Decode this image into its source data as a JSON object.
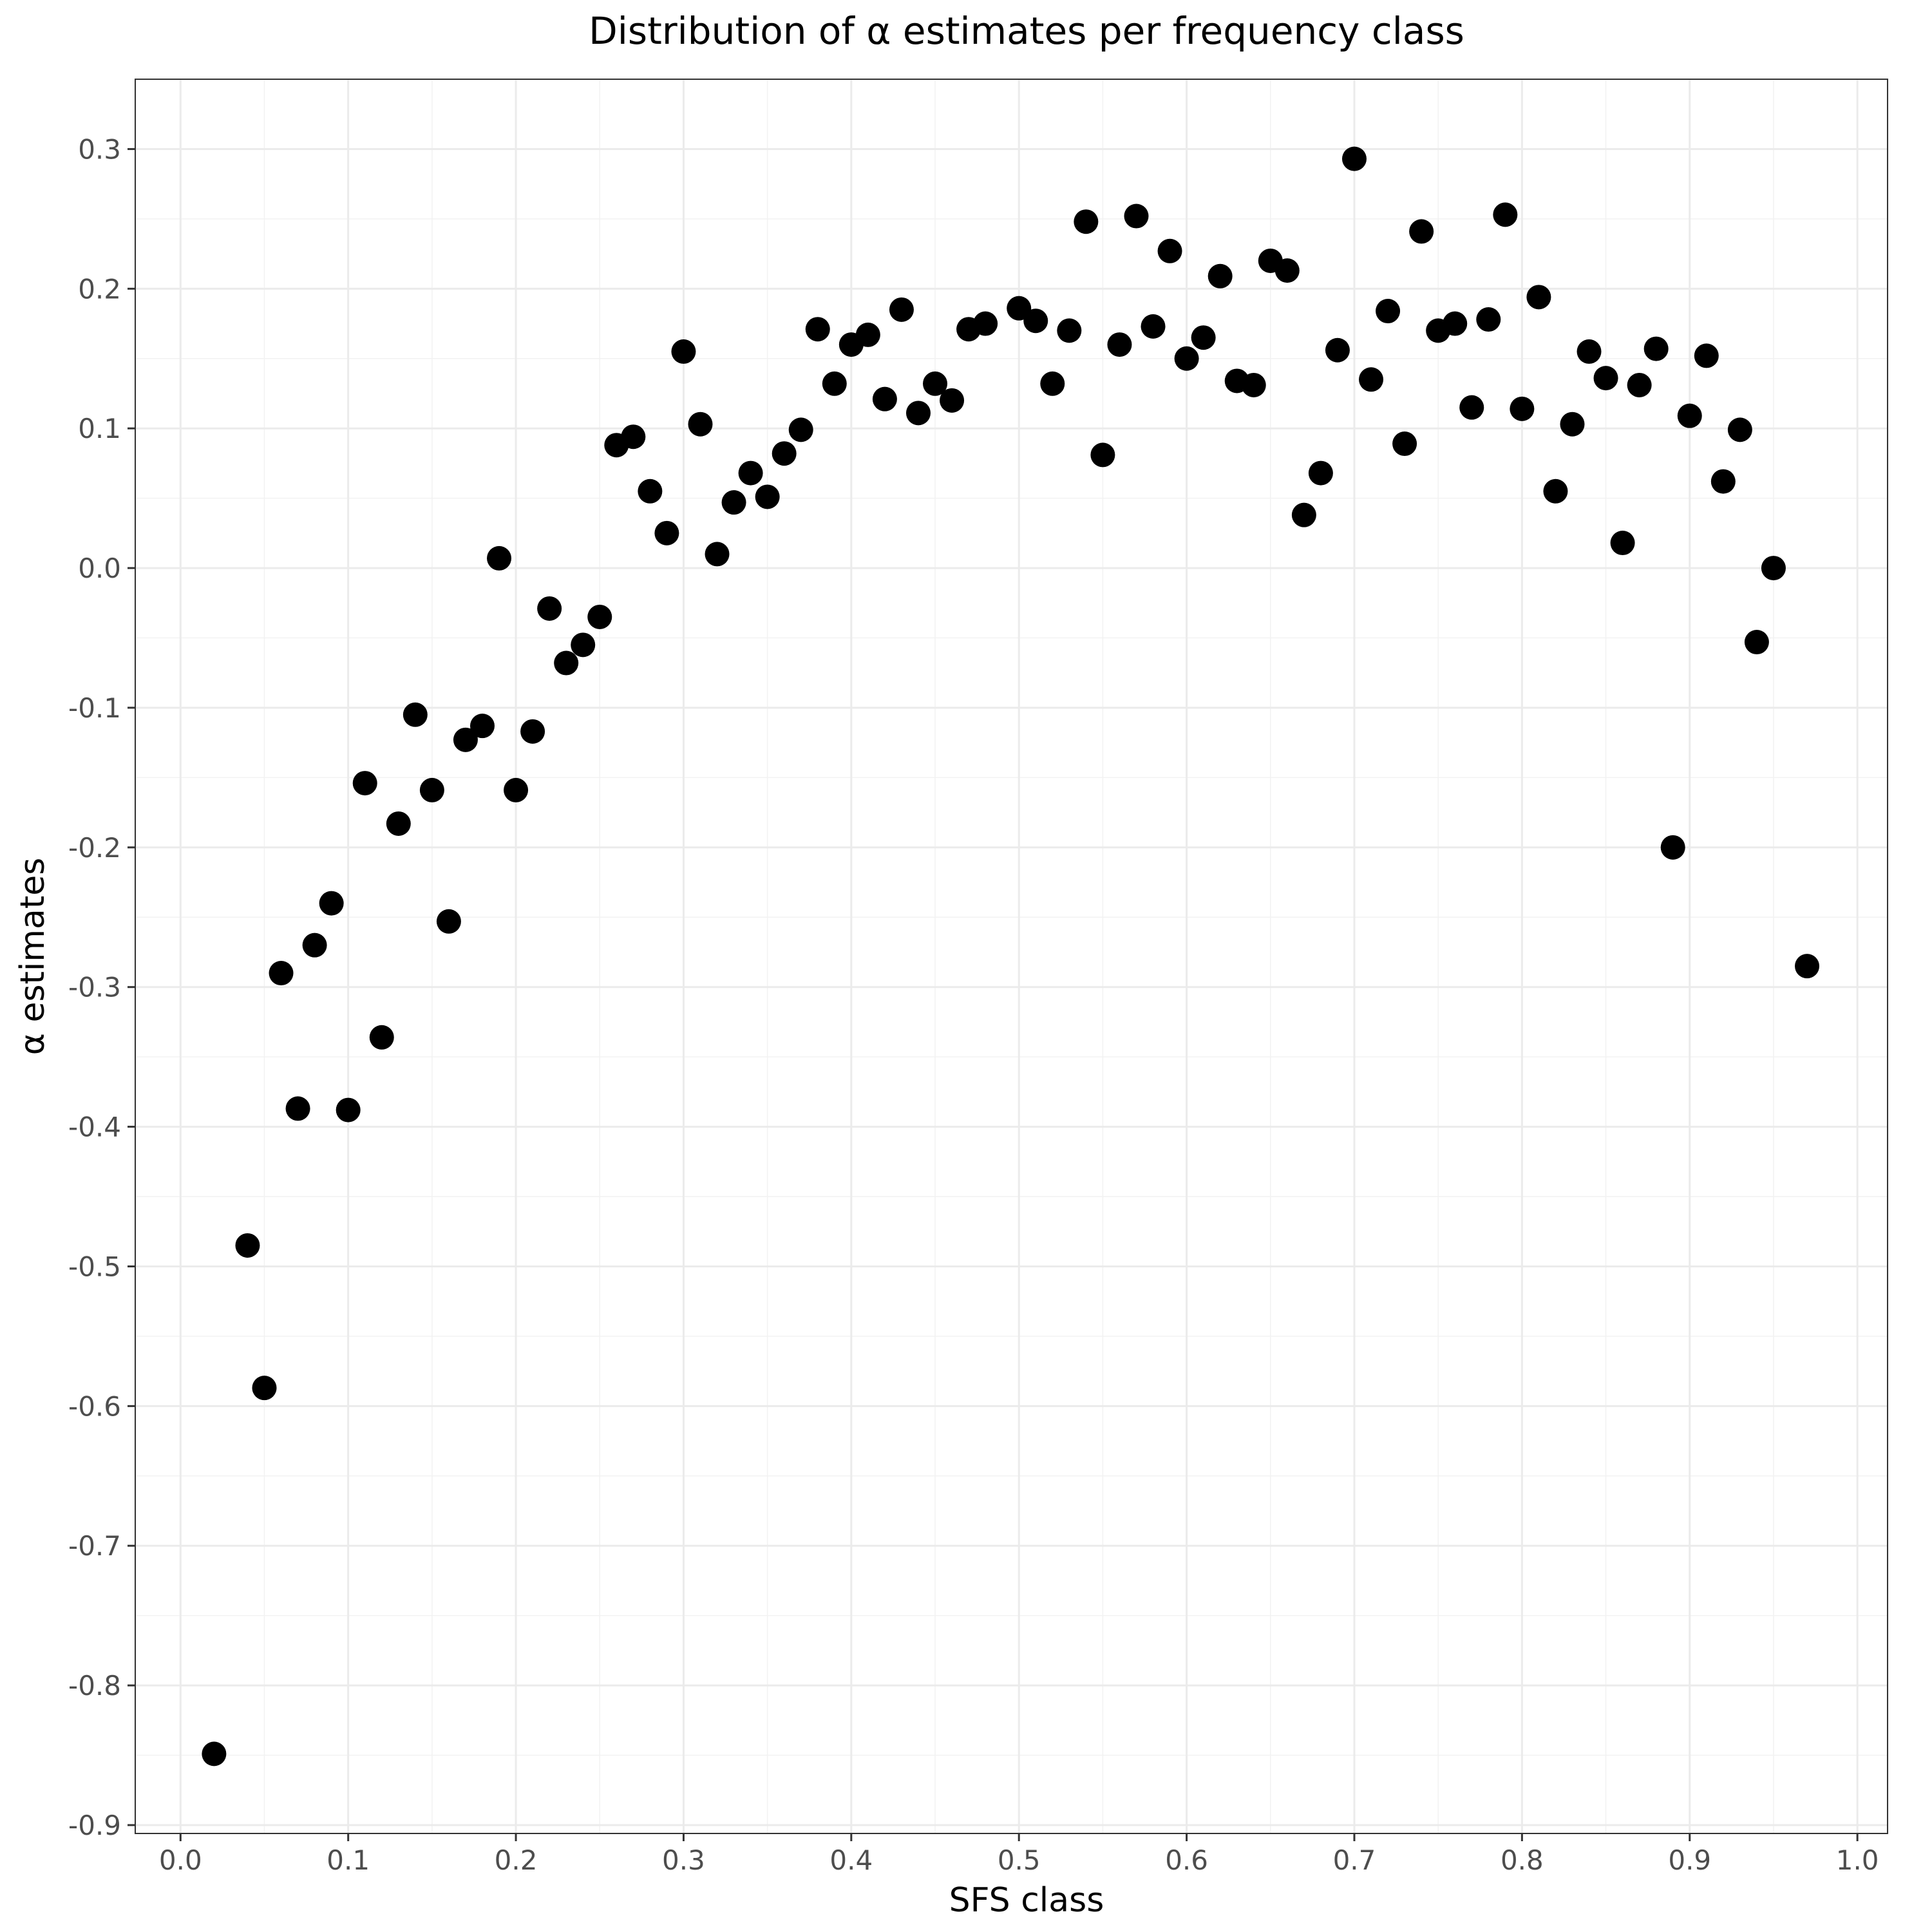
{
  "chart_data": {
    "type": "scatter",
    "title": "Distribution of  α estimates per frequency class",
    "xlabel": "SFS class",
    "ylabel": "α estimates",
    "xlim": [
      -0.027,
      1.018
    ],
    "ylim": [
      -0.906,
      0.35
    ],
    "xticks": [
      0.0,
      0.1,
      0.2,
      0.3,
      0.4,
      0.5,
      0.6,
      0.7,
      0.8,
      0.9,
      1.0
    ],
    "xtick_labels": [
      "0.0",
      "0.1",
      "0.2",
      "0.3",
      "0.4",
      "0.5",
      "0.6",
      "0.7",
      "0.8",
      "0.9",
      "1.0"
    ],
    "yticks": [
      0.3,
      0.2,
      0.1,
      0.0,
      -0.1,
      -0.2,
      -0.3,
      -0.4,
      -0.5,
      -0.6,
      -0.7,
      -0.8,
      -0.9
    ],
    "ytick_labels": [
      "0.3",
      "0.2",
      "0.1",
      "0.0",
      "-0.1",
      "-0.2",
      "-0.3",
      "-0.4",
      "-0.5",
      "-0.6",
      "-0.7",
      "-0.8",
      "-0.9"
    ],
    "grid": true,
    "point_color": "#000000",
    "points": [
      {
        "x": 0.02,
        "y": -0.849
      },
      {
        "x": 0.04,
        "y": -0.485
      },
      {
        "x": 0.05,
        "y": -0.587
      },
      {
        "x": 0.06,
        "y": -0.29
      },
      {
        "x": 0.07,
        "y": -0.387
      },
      {
        "x": 0.08,
        "y": -0.27
      },
      {
        "x": 0.09,
        "y": -0.24
      },
      {
        "x": 0.1,
        "y": -0.388
      },
      {
        "x": 0.11,
        "y": -0.154
      },
      {
        "x": 0.12,
        "y": -0.336
      },
      {
        "x": 0.13,
        "y": -0.183
      },
      {
        "x": 0.14,
        "y": -0.105
      },
      {
        "x": 0.15,
        "y": -0.159
      },
      {
        "x": 0.16,
        "y": -0.253
      },
      {
        "x": 0.17,
        "y": -0.123
      },
      {
        "x": 0.18,
        "y": -0.113
      },
      {
        "x": 0.19,
        "y": 0.007
      },
      {
        "x": 0.2,
        "y": -0.159
      },
      {
        "x": 0.21,
        "y": -0.117
      },
      {
        "x": 0.22,
        "y": -0.029
      },
      {
        "x": 0.23,
        "y": -0.068
      },
      {
        "x": 0.24,
        "y": -0.055
      },
      {
        "x": 0.25,
        "y": -0.035
      },
      {
        "x": 0.26,
        "y": 0.088
      },
      {
        "x": 0.27,
        "y": 0.094
      },
      {
        "x": 0.28,
        "y": 0.055
      },
      {
        "x": 0.29,
        "y": 0.025
      },
      {
        "x": 0.3,
        "y": 0.155
      },
      {
        "x": 0.31,
        "y": 0.103
      },
      {
        "x": 0.32,
        "y": 0.01
      },
      {
        "x": 0.33,
        "y": 0.047
      },
      {
        "x": 0.34,
        "y": 0.068
      },
      {
        "x": 0.35,
        "y": 0.051
      },
      {
        "x": 0.36,
        "y": 0.082
      },
      {
        "x": 0.37,
        "y": 0.099
      },
      {
        "x": 0.38,
        "y": 0.171
      },
      {
        "x": 0.39,
        "y": 0.132
      },
      {
        "x": 0.4,
        "y": 0.16
      },
      {
        "x": 0.41,
        "y": 0.167
      },
      {
        "x": 0.42,
        "y": 0.121
      },
      {
        "x": 0.43,
        "y": 0.185
      },
      {
        "x": 0.44,
        "y": 0.111
      },
      {
        "x": 0.45,
        "y": 0.132
      },
      {
        "x": 0.46,
        "y": 0.12
      },
      {
        "x": 0.47,
        "y": 0.171
      },
      {
        "x": 0.48,
        "y": 0.175
      },
      {
        "x": 0.5,
        "y": 0.186
      },
      {
        "x": 0.51,
        "y": 0.177
      },
      {
        "x": 0.52,
        "y": 0.132
      },
      {
        "x": 0.53,
        "y": 0.17
      },
      {
        "x": 0.54,
        "y": 0.248
      },
      {
        "x": 0.55,
        "y": 0.081
      },
      {
        "x": 0.56,
        "y": 0.16
      },
      {
        "x": 0.57,
        "y": 0.252
      },
      {
        "x": 0.58,
        "y": 0.173
      },
      {
        "x": 0.59,
        "y": 0.227
      },
      {
        "x": 0.6,
        "y": 0.15
      },
      {
        "x": 0.61,
        "y": 0.165
      },
      {
        "x": 0.62,
        "y": 0.209
      },
      {
        "x": 0.63,
        "y": 0.134
      },
      {
        "x": 0.64,
        "y": 0.131
      },
      {
        "x": 0.65,
        "y": 0.22
      },
      {
        "x": 0.66,
        "y": 0.213
      },
      {
        "x": 0.67,
        "y": 0.038
      },
      {
        "x": 0.68,
        "y": 0.068
      },
      {
        "x": 0.69,
        "y": 0.156
      },
      {
        "x": 0.7,
        "y": 0.293
      },
      {
        "x": 0.71,
        "y": 0.135
      },
      {
        "x": 0.72,
        "y": 0.184
      },
      {
        "x": 0.73,
        "y": 0.089
      },
      {
        "x": 0.74,
        "y": 0.241
      },
      {
        "x": 0.75,
        "y": 0.17
      },
      {
        "x": 0.76,
        "y": 0.175
      },
      {
        "x": 0.77,
        "y": 0.115
      },
      {
        "x": 0.78,
        "y": 0.178
      },
      {
        "x": 0.79,
        "y": 0.253
      },
      {
        "x": 0.8,
        "y": 0.114
      },
      {
        "x": 0.81,
        "y": 0.194
      },
      {
        "x": 0.82,
        "y": 0.055
      },
      {
        "x": 0.83,
        "y": 0.103
      },
      {
        "x": 0.84,
        "y": 0.155
      },
      {
        "x": 0.85,
        "y": 0.136
      },
      {
        "x": 0.86,
        "y": 0.018
      },
      {
        "x": 0.87,
        "y": 0.131
      },
      {
        "x": 0.88,
        "y": 0.157
      },
      {
        "x": 0.89,
        "y": -0.2
      },
      {
        "x": 0.9,
        "y": 0.109
      },
      {
        "x": 0.91,
        "y": 0.152
      },
      {
        "x": 0.92,
        "y": 0.062
      },
      {
        "x": 0.93,
        "y": 0.099
      },
      {
        "x": 0.94,
        "y": -0.053
      },
      {
        "x": 0.95,
        "y": 0.0
      },
      {
        "x": 0.97,
        "y": -0.285
      }
    ]
  }
}
